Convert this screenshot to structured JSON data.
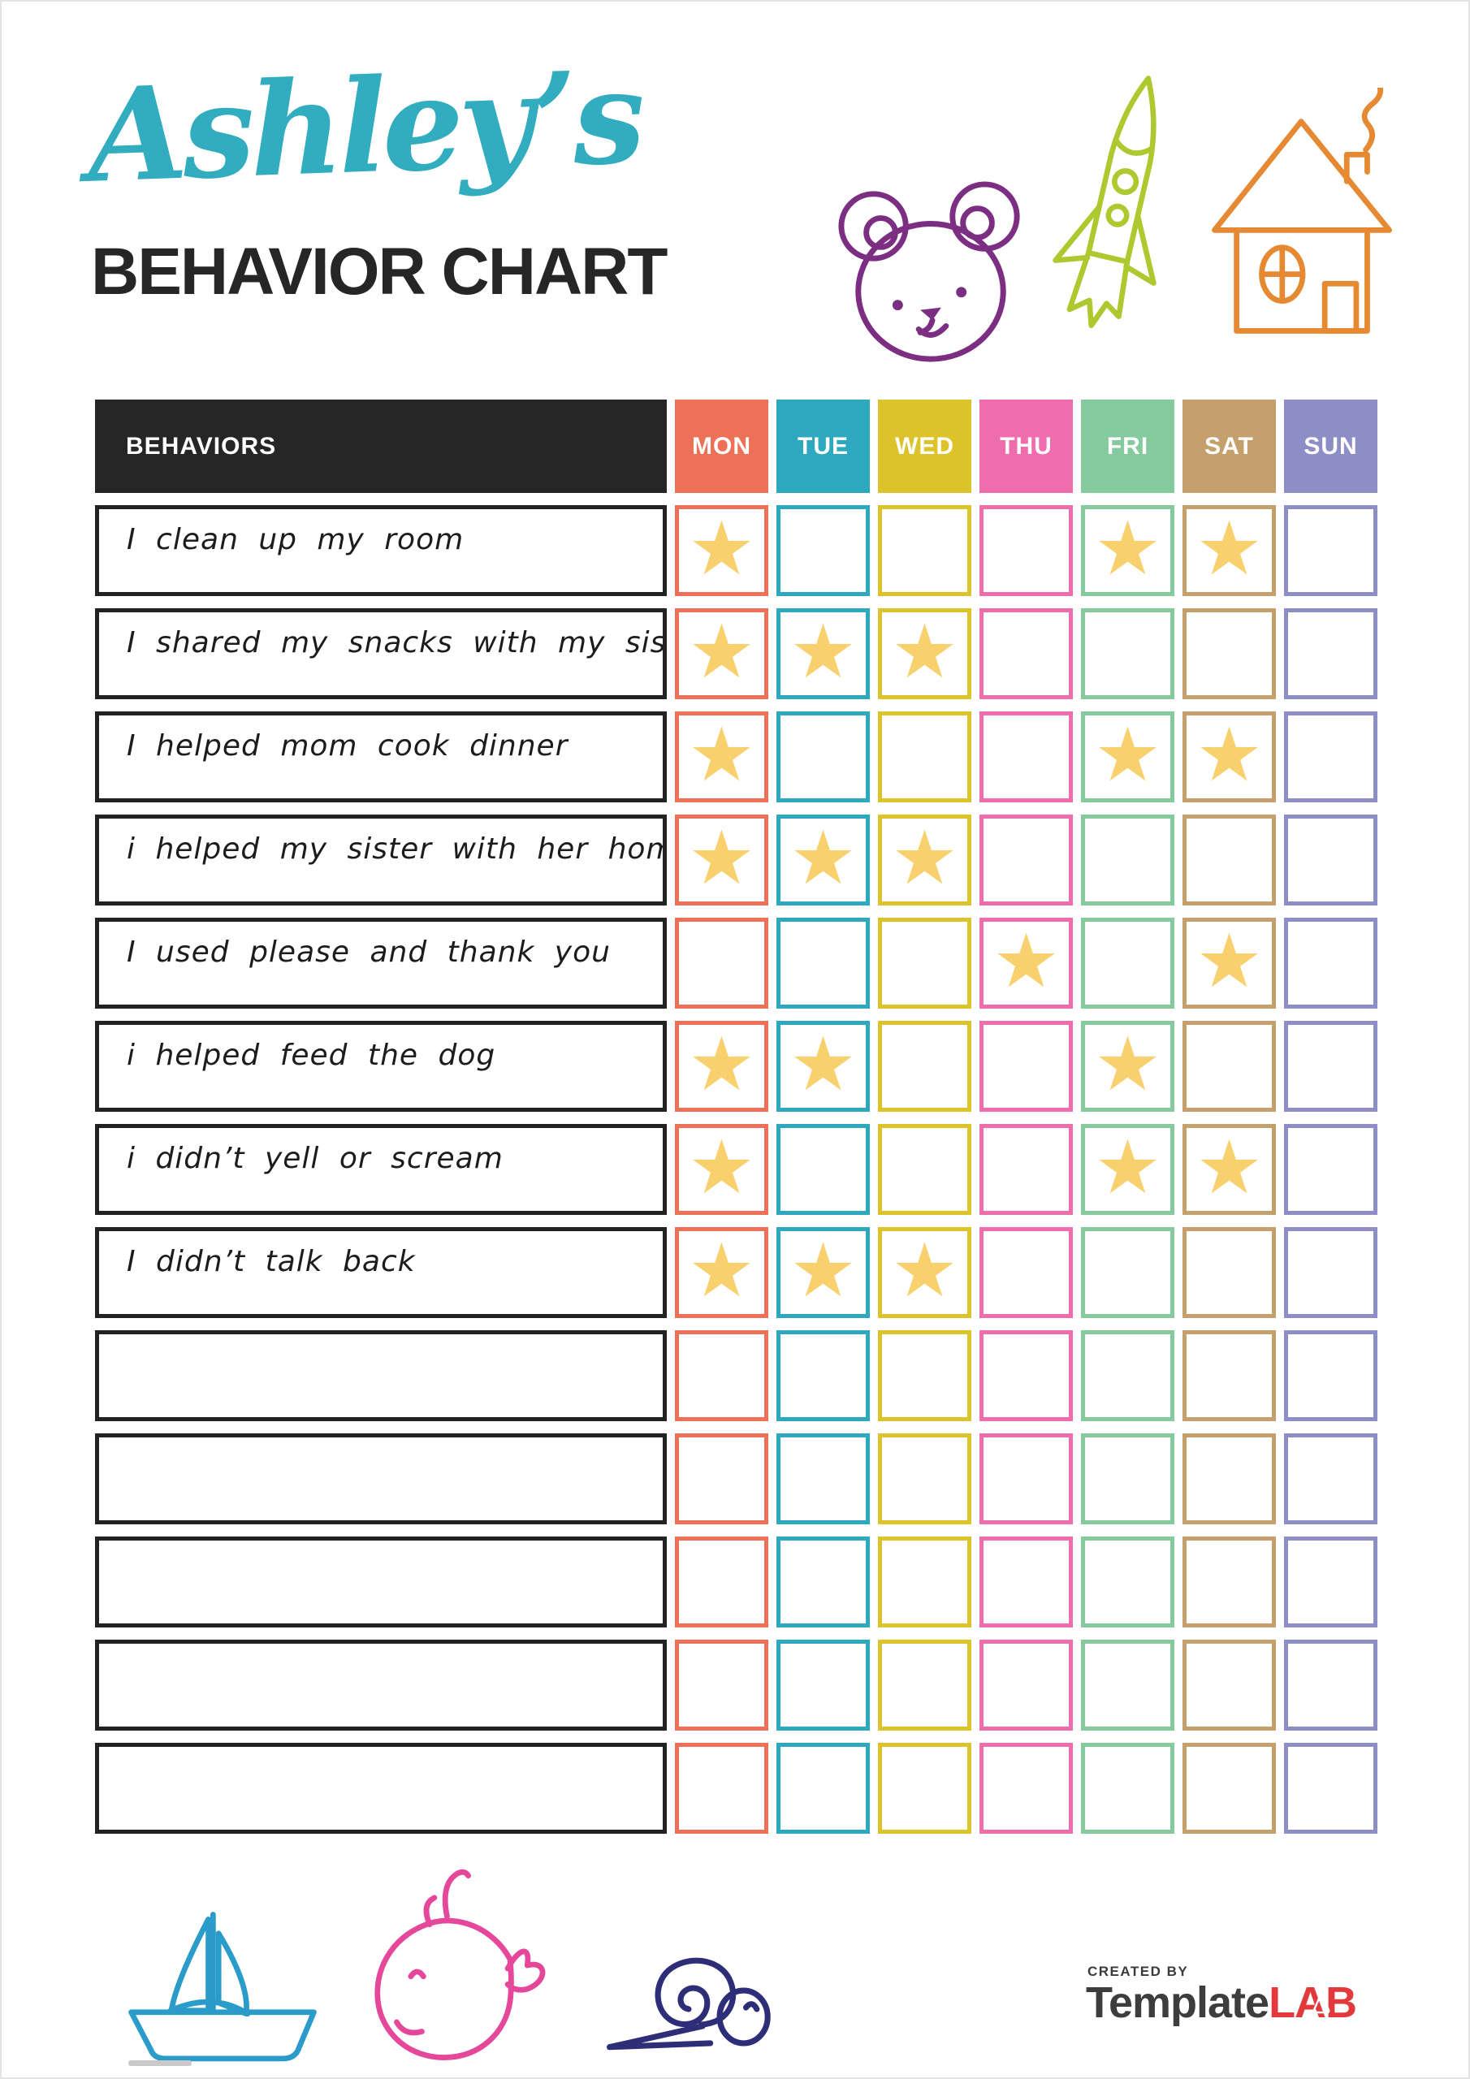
{
  "page": {
    "name_script": "Ashley’s",
    "title": "BEHAVIOR CHART"
  },
  "icons": {
    "star_glyph": "★",
    "header_doodles": [
      "bear-icon",
      "rocket-icon",
      "house-icon"
    ],
    "footer_doodles": [
      "sailboat-icon",
      "whale-icon",
      "snail-icon"
    ]
  },
  "colors": {
    "title_script": "#31adbf",
    "title_main": "#262626",
    "behaviors_header_bg": "#262626",
    "star": "#f8d06e",
    "row_border": "#222222",
    "bear": "#7c2e83",
    "rocket": "#adc92f",
    "house": "#e68933",
    "sailboat": "#2b9cc9",
    "whale": "#e5479a",
    "snail": "#2e2e78",
    "logo_gray": "#3d3d3d",
    "logo_red": "#e23a3c"
  },
  "table": {
    "behaviors_header": "BEHAVIORS",
    "day_headers": [
      "MON",
      "TUE",
      "WED",
      "THU",
      "FRI",
      "SAT",
      "SUN"
    ],
    "day_colors": [
      "#ed7157",
      "#2ea8be",
      "#ddc32b",
      "#ef6cad",
      "#84ca9c",
      "#c5a06c",
      "#8e8ec7"
    ],
    "rows": [
      {
        "label": "I clean up my room",
        "stars": [
          1,
          0,
          0,
          0,
          1,
          1,
          0
        ]
      },
      {
        "label": "I shared my snacks with my sister",
        "stars": [
          1,
          1,
          1,
          0,
          0,
          0,
          0
        ]
      },
      {
        "label": "I helped mom cook dinner",
        "stars": [
          1,
          0,
          0,
          0,
          1,
          1,
          0
        ]
      },
      {
        "label": "i helped my sister with her homework",
        "stars": [
          1,
          1,
          1,
          0,
          0,
          0,
          0
        ]
      },
      {
        "label": "I used please and thank you",
        "stars": [
          0,
          0,
          0,
          1,
          0,
          1,
          0
        ]
      },
      {
        "label": "i helped feed the dog",
        "stars": [
          1,
          1,
          0,
          0,
          1,
          0,
          0
        ]
      },
      {
        "label": "i didn’t yell or scream",
        "stars": [
          1,
          0,
          0,
          0,
          1,
          1,
          0
        ]
      },
      {
        "label": "I didn’t talk back",
        "stars": [
          1,
          1,
          1,
          0,
          0,
          0,
          0
        ]
      },
      {
        "label": "",
        "stars": [
          0,
          0,
          0,
          0,
          0,
          0,
          0
        ]
      },
      {
        "label": "",
        "stars": [
          0,
          0,
          0,
          0,
          0,
          0,
          0
        ]
      },
      {
        "label": "",
        "stars": [
          0,
          0,
          0,
          0,
          0,
          0,
          0
        ]
      },
      {
        "label": "",
        "stars": [
          0,
          0,
          0,
          0,
          0,
          0,
          0
        ]
      },
      {
        "label": "",
        "stars": [
          0,
          0,
          0,
          0,
          0,
          0,
          0
        ]
      }
    ]
  },
  "footer": {
    "created_by": "CREATED BY",
    "brand_part1": "Template",
    "brand_part2": "LAB"
  }
}
